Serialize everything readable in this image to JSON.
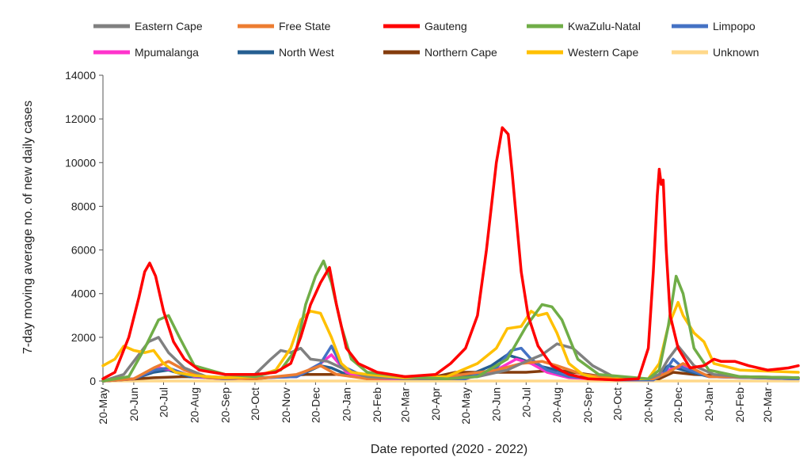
{
  "chart_data": {
    "type": "line",
    "title": "",
    "xlabel": "Date reported (2020 - 2022)",
    "ylabel": "7-day moving average no. of new daily cases",
    "ylim": [
      0,
      14000
    ],
    "yticks": [
      0,
      2000,
      4000,
      6000,
      8000,
      10000,
      12000,
      14000
    ],
    "grid": false,
    "legend_position": "top",
    "x_domain": [
      "2020-05-20",
      "2022-04-20"
    ],
    "x_tick_labels": [
      "20-May",
      "20-Jun",
      "20-Jul",
      "20-Aug",
      "20-Sep",
      "20-Oct",
      "20-Nov",
      "20-Dec",
      "20-Jan",
      "20-Feb",
      "20-Mar",
      "20-Apr",
      "20-May",
      "20-Jun",
      "20-Jul",
      "20-Aug",
      "20-Sep",
      "20-Oct",
      "20-Nov",
      "20-Dec",
      "20-Jan",
      "20-Feb",
      "20-Mar"
    ],
    "x_tick_dates": [
      "2020-05-20",
      "2020-06-20",
      "2020-07-20",
      "2020-08-20",
      "2020-09-20",
      "2020-10-20",
      "2020-11-20",
      "2020-12-20",
      "2021-01-20",
      "2021-02-20",
      "2021-03-20",
      "2021-04-20",
      "2021-05-20",
      "2021-06-20",
      "2021-07-20",
      "2021-08-20",
      "2021-09-20",
      "2021-10-20",
      "2021-11-20",
      "2021-12-20",
      "2022-01-20",
      "2022-02-20",
      "2022-03-20"
    ],
    "series": [
      {
        "name": "Eastern Cape",
        "color": "#808080",
        "x": [
          "2020-05-20",
          "2020-06-10",
          "2020-06-25",
          "2020-07-05",
          "2020-07-15",
          "2020-07-25",
          "2020-08-10",
          "2020-09-01",
          "2020-10-01",
          "2020-10-20",
          "2020-11-05",
          "2020-11-15",
          "2020-11-25",
          "2020-12-05",
          "2020-12-15",
          "2021-01-01",
          "2021-01-20",
          "2021-02-10",
          "2021-03-20",
          "2021-05-01",
          "2021-06-01",
          "2021-07-01",
          "2021-07-20",
          "2021-08-05",
          "2021-08-20",
          "2021-09-05",
          "2021-09-25",
          "2021-10-20",
          "2021-11-20",
          "2021-12-01",
          "2021-12-10",
          "2021-12-20",
          "2022-01-05",
          "2022-01-25",
          "2022-02-20",
          "2022-04-20"
        ],
        "values": [
          0,
          300,
          1200,
          1800,
          2000,
          1300,
          600,
          200,
          150,
          300,
          1000,
          1400,
          1300,
          1500,
          1000,
          900,
          500,
          200,
          100,
          100,
          200,
          500,
          900,
          1200,
          1700,
          1500,
          700,
          100,
          100,
          300,
          1000,
          1600,
          700,
          300,
          200,
          150
        ]
      },
      {
        "name": "Free State",
        "color": "#ED7D31",
        "x": [
          "2020-05-20",
          "2020-06-20",
          "2020-07-10",
          "2020-07-25",
          "2020-08-10",
          "2020-09-01",
          "2020-10-20",
          "2020-12-01",
          "2020-12-25",
          "2021-01-10",
          "2021-02-10",
          "2021-05-01",
          "2021-06-20",
          "2021-07-15",
          "2021-08-05",
          "2021-08-20",
          "2021-09-15",
          "2021-10-20",
          "2021-11-25",
          "2021-12-10",
          "2021-12-25",
          "2022-01-20",
          "2022-04-20"
        ],
        "values": [
          0,
          100,
          600,
          900,
          500,
          150,
          100,
          300,
          700,
          300,
          100,
          200,
          500,
          800,
          900,
          700,
          300,
          100,
          100,
          400,
          800,
          200,
          150
        ]
      },
      {
        "name": "Gauteng",
        "color": "#FF0000",
        "x": [
          "2020-05-20",
          "2020-06-01",
          "2020-06-15",
          "2020-06-25",
          "2020-07-01",
          "2020-07-06",
          "2020-07-12",
          "2020-07-20",
          "2020-07-30",
          "2020-08-10",
          "2020-08-25",
          "2020-09-20",
          "2020-10-20",
          "2020-11-10",
          "2020-11-25",
          "2020-12-05",
          "2020-12-15",
          "2020-12-25",
          "2021-01-03",
          "2021-01-10",
          "2021-01-20",
          "2021-02-01",
          "2021-02-20",
          "2021-03-20",
          "2021-04-20",
          "2021-05-05",
          "2021-05-20",
          "2021-06-01",
          "2021-06-10",
          "2021-06-20",
          "2021-06-26",
          "2021-07-02",
          "2021-07-06",
          "2021-07-10",
          "2021-07-15",
          "2021-07-22",
          "2021-08-01",
          "2021-08-15",
          "2021-09-01",
          "2021-09-20",
          "2021-10-20",
          "2021-11-10",
          "2021-11-20",
          "2021-11-25",
          "2021-11-29",
          "2021-12-01",
          "2021-12-03",
          "2021-12-05",
          "2021-12-08",
          "2021-12-12",
          "2021-12-20",
          "2022-01-01",
          "2022-01-15",
          "2022-01-25",
          "2022-02-01",
          "2022-02-15",
          "2022-03-01",
          "2022-03-20",
          "2022-04-10",
          "2022-04-20"
        ],
        "values": [
          100,
          400,
          2000,
          3800,
          5000,
          5400,
          4800,
          3200,
          1800,
          1000,
          500,
          300,
          300,
          400,
          800,
          2000,
          3500,
          4500,
          5200,
          3500,
          1500,
          800,
          400,
          200,
          300,
          800,
          1500,
          3000,
          6000,
          10000,
          11600,
          11300,
          9500,
          7500,
          5000,
          3000,
          1600,
          700,
          300,
          100,
          50,
          100,
          1500,
          5000,
          8500,
          9700,
          9000,
          9200,
          6000,
          3000,
          1500,
          600,
          700,
          1000,
          900,
          900,
          700,
          500,
          600,
          700
        ]
      },
      {
        "name": "KwaZulu-Natal",
        "color": "#70AD47",
        "x": [
          "2020-05-20",
          "2020-06-15",
          "2020-07-01",
          "2020-07-15",
          "2020-07-25",
          "2020-08-05",
          "2020-08-20",
          "2020-09-20",
          "2020-10-20",
          "2020-11-15",
          "2020-12-01",
          "2020-12-10",
          "2020-12-20",
          "2020-12-28",
          "2021-01-05",
          "2021-01-15",
          "2021-01-25",
          "2021-02-10",
          "2021-03-20",
          "2021-05-01",
          "2021-06-01",
          "2021-07-01",
          "2021-07-20",
          "2021-08-05",
          "2021-08-15",
          "2021-08-25",
          "2021-09-10",
          "2021-10-01",
          "2021-11-20",
          "2021-12-01",
          "2021-12-10",
          "2021-12-18",
          "2021-12-25",
          "2022-01-05",
          "2022-01-20",
          "2022-02-20",
          "2022-04-20"
        ],
        "values": [
          0,
          200,
          1500,
          2800,
          3000,
          2000,
          700,
          300,
          200,
          500,
          1500,
          3500,
          4800,
          5500,
          4500,
          2500,
          1000,
          400,
          200,
          100,
          200,
          1000,
          2500,
          3500,
          3400,
          2800,
          1000,
          300,
          100,
          500,
          2500,
          4800,
          4000,
          1500,
          500,
          200,
          150
        ]
      },
      {
        "name": "Limpopo",
        "color": "#4472C4",
        "x": [
          "2020-05-20",
          "2020-06-20",
          "2020-07-10",
          "2020-07-25",
          "2020-08-15",
          "2020-09-20",
          "2020-12-01",
          "2020-12-25",
          "2021-01-05",
          "2021-01-15",
          "2021-02-10",
          "2021-05-20",
          "2021-06-20",
          "2021-07-05",
          "2021-07-15",
          "2021-07-25",
          "2021-08-10",
          "2021-09-01",
          "2021-10-20",
          "2021-11-25",
          "2021-12-05",
          "2021-12-15",
          "2021-12-25",
          "2022-01-20",
          "2022-04-20"
        ],
        "values": [
          0,
          100,
          500,
          600,
          250,
          100,
          200,
          800,
          1600,
          700,
          150,
          100,
          600,
          1400,
          1500,
          1000,
          500,
          200,
          50,
          50,
          300,
          1000,
          600,
          200,
          100
        ]
      },
      {
        "name": "Mpumalanga",
        "color": "#FF33CC",
        "x": [
          "2020-05-20",
          "2020-06-20",
          "2020-07-15",
          "2020-07-30",
          "2020-08-20",
          "2020-09-20",
          "2020-12-01",
          "2020-12-25",
          "2021-01-05",
          "2021-01-20",
          "2021-02-10",
          "2021-05-20",
          "2021-06-20",
          "2021-07-10",
          "2021-07-25",
          "2021-08-10",
          "2021-09-01",
          "2021-10-20",
          "2021-11-25",
          "2021-12-10",
          "2021-12-25",
          "2022-01-20",
          "2022-04-20"
        ],
        "values": [
          0,
          100,
          600,
          500,
          200,
          100,
          200,
          800,
          1200,
          400,
          100,
          100,
          500,
          1000,
          800,
          400,
          150,
          50,
          50,
          500,
          700,
          200,
          100
        ]
      },
      {
        "name": "North West",
        "color": "#255E91",
        "x": [
          "2020-05-20",
          "2020-06-20",
          "2020-07-10",
          "2020-07-25",
          "2020-08-15",
          "2020-09-20",
          "2020-12-01",
          "2020-12-25",
          "2021-01-05",
          "2021-01-20",
          "2021-02-10",
          "2021-05-20",
          "2021-06-15",
          "2021-07-01",
          "2021-07-15",
          "2021-08-01",
          "2021-08-20",
          "2021-09-10",
          "2021-10-20",
          "2021-11-25",
          "2021-12-10",
          "2021-12-25",
          "2022-01-20",
          "2022-04-20"
        ],
        "values": [
          0,
          100,
          400,
          500,
          200,
          100,
          200,
          700,
          600,
          300,
          100,
          200,
          700,
          1200,
          1000,
          700,
          500,
          200,
          50,
          50,
          700,
          500,
          200,
          100
        ]
      },
      {
        "name": "Northern Cape",
        "color": "#843C0C",
        "x": [
          "2020-05-20",
          "2020-07-10",
          "2020-08-10",
          "2020-10-20",
          "2020-12-10",
          "2021-01-10",
          "2021-02-20",
          "2021-04-20",
          "2021-05-10",
          "2021-06-20",
          "2021-07-20",
          "2021-08-20",
          "2021-09-20",
          "2021-10-20",
          "2021-12-01",
          "2021-12-15",
          "2022-01-05",
          "2022-02-20",
          "2022-04-20"
        ],
        "values": [
          0,
          150,
          200,
          100,
          300,
          300,
          150,
          200,
          400,
          400,
          400,
          500,
          300,
          100,
          100,
          400,
          300,
          200,
          150
        ]
      },
      {
        "name": "Western Cape",
        "color": "#FFC000",
        "x": [
          "2020-05-20",
          "2020-06-01",
          "2020-06-10",
          "2020-06-20",
          "2020-07-01",
          "2020-07-10",
          "2020-07-20",
          "2020-08-01",
          "2020-08-20",
          "2020-09-20",
          "2020-10-20",
          "2020-11-10",
          "2020-11-25",
          "2020-12-05",
          "2020-12-15",
          "2020-12-25",
          "2021-01-05",
          "2021-01-15",
          "2021-01-25",
          "2021-02-10",
          "2021-03-20",
          "2021-05-01",
          "2021-06-01",
          "2021-06-20",
          "2021-07-01",
          "2021-07-15",
          "2021-07-25",
          "2021-08-01",
          "2021-08-10",
          "2021-08-20",
          "2021-09-01",
          "2021-09-15",
          "2021-10-01",
          "2021-11-20",
          "2021-12-01",
          "2021-12-10",
          "2021-12-20",
          "2021-12-25",
          "2022-01-05",
          "2022-01-15",
          "2022-01-25",
          "2022-02-20",
          "2022-04-20"
        ],
        "values": [
          700,
          1000,
          1600,
          1400,
          1300,
          1400,
          800,
          400,
          250,
          150,
          200,
          500,
          1500,
          2800,
          3200,
          3100,
          2000,
          800,
          400,
          300,
          150,
          200,
          800,
          1500,
          2400,
          2500,
          3200,
          3000,
          3100,
          2200,
          800,
          300,
          100,
          100,
          800,
          2500,
          3600,
          3000,
          2200,
          1800,
          800,
          500,
          400
        ]
      },
      {
        "name": "Unknown",
        "color": "#FFD88A",
        "x": [
          "2020-05-20",
          "2022-04-20"
        ],
        "values": [
          0,
          0
        ]
      }
    ]
  }
}
